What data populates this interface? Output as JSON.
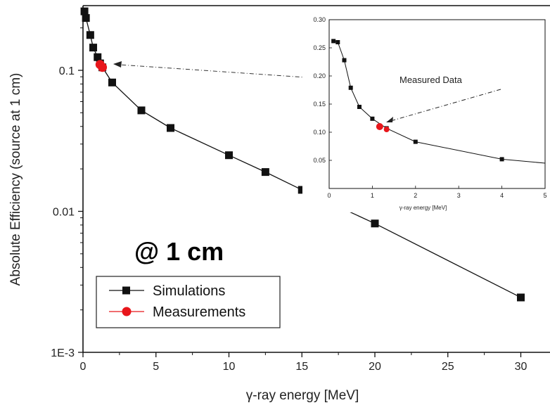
{
  "chart_data": [
    {
      "type": "line",
      "scale": "log-y",
      "xlabel": "γ-ray energy [MeV]",
      "ylabel": "Absolute Efficiency (source at 1 cm)",
      "xlim": [
        0,
        32
      ],
      "ylim": [
        0.001,
        0.28
      ],
      "x_ticks": [
        0,
        5,
        10,
        15,
        20,
        25,
        30
      ],
      "y_ticks": [
        {
          "value": 0.001,
          "label": "1E-3"
        },
        {
          "value": 0.01,
          "label": "0.01"
        },
        {
          "value": 0.1,
          "label": "0.1"
        }
      ],
      "annotation": "@ 1 cm",
      "legend_position": "bottom-left",
      "series": [
        {
          "name": "Simulations",
          "color": "#111111",
          "marker": "square",
          "x": [
            0.1,
            0.2,
            0.5,
            0.7,
            1.0,
            1.17,
            1.33,
            2,
            4,
            6,
            10,
            12.5,
            15,
            20,
            30
          ],
          "y": [
            0.262,
            0.235,
            0.178,
            0.145,
            0.124,
            0.112,
            0.105,
            0.082,
            0.052,
            0.039,
            0.025,
            0.019,
            0.0142,
            0.0082,
            0.00245
          ]
        },
        {
          "name": "Measurements",
          "color": "#e8161b",
          "marker": "circle",
          "x": [
            1.17,
            1.33
          ],
          "y": [
            0.11,
            0.105
          ]
        }
      ]
    },
    {
      "type": "line",
      "role": "inset",
      "xlabel": "γ-ray energy [MeV]",
      "ylabel": "",
      "xlim": [
        0,
        5
      ],
      "ylim": [
        0,
        0.3
      ],
      "x_ticks": [
        0,
        1,
        2,
        3,
        4,
        5
      ],
      "y_ticks": [
        {
          "value": 0.05,
          "label": "0.05"
        },
        {
          "value": 0.1,
          "label": "0.10"
        },
        {
          "value": 0.15,
          "label": "0.15"
        },
        {
          "value": 0.2,
          "label": "0.20"
        },
        {
          "value": 0.25,
          "label": "0.25"
        },
        {
          "value": 0.3,
          "label": "0.30"
        }
      ],
      "annotation": "Measured Data",
      "series": [
        {
          "name": "Simulations",
          "color": "#111111",
          "marker": "square",
          "x": [
            0.1,
            0.2,
            0.35,
            0.5,
            0.7,
            1.0,
            1.33,
            2,
            4,
            5.1
          ],
          "y": [
            0.262,
            0.26,
            0.228,
            0.179,
            0.145,
            0.124,
            0.107,
            0.083,
            0.052,
            0.045
          ]
        },
        {
          "name": "Measurements",
          "color": "#e8161b",
          "marker": "circle",
          "x": [
            1.17,
            1.33
          ],
          "y": [
            0.11,
            0.105
          ]
        }
      ]
    }
  ]
}
